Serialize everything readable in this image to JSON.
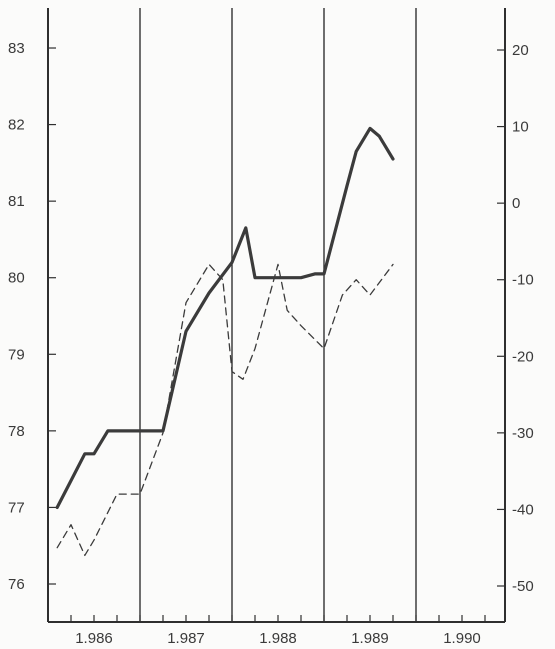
{
  "chart_data": {
    "type": "line",
    "x_tick_labels": [
      "1.986",
      "1.987",
      "1.988",
      "1.989",
      "1.990"
    ],
    "left_axis": {
      "ylim": [
        75.7,
        83.3
      ],
      "ticks": [
        "76",
        "77",
        "78",
        "79",
        "80",
        "81",
        "82",
        "83"
      ]
    },
    "right_axis": {
      "ylim": [
        -54,
        26
      ],
      "ticks": [
        "-50",
        "-40",
        "-30",
        "-20",
        "-10",
        "0",
        "10",
        "20"
      ]
    },
    "vertical_gridlines": true,
    "series": [
      {
        "style": "solid-thick",
        "axis": "left",
        "x": [
          1985.6,
          1985.75,
          1985.9,
          1986.0,
          1986.15,
          1986.25,
          1986.5,
          1986.75,
          1987.0,
          1987.25,
          1987.5,
          1987.65,
          1987.75,
          1988.0,
          1988.25,
          1988.4,
          1988.5,
          1988.75,
          1988.85,
          1989.0,
          1989.1,
          1989.25
        ],
        "y": [
          77.0,
          77.35,
          77.7,
          77.7,
          78.0,
          78.0,
          78.0,
          78.0,
          79.3,
          79.8,
          80.2,
          80.65,
          80.0,
          80.0,
          80.0,
          80.05,
          80.05,
          81.2,
          81.65,
          81.95,
          81.85,
          81.55
        ]
      },
      {
        "style": "dashed",
        "axis": "right",
        "x": [
          1985.6,
          1985.75,
          1985.9,
          1986.0,
          1986.25,
          1986.5,
          1986.75,
          1987.0,
          1987.25,
          1987.4,
          1987.5,
          1987.62,
          1987.75,
          1988.0,
          1988.1,
          1988.25,
          1988.5,
          1988.7,
          1988.85,
          1989.0,
          1989.25
        ],
        "y": [
          -45,
          -42,
          -46,
          -44,
          -38,
          -38,
          -30,
          -13,
          -8,
          -10,
          -22,
          -23,
          -19,
          -8,
          -14,
          -16,
          -19,
          -12,
          -10,
          -12,
          -8
        ]
      }
    ]
  }
}
